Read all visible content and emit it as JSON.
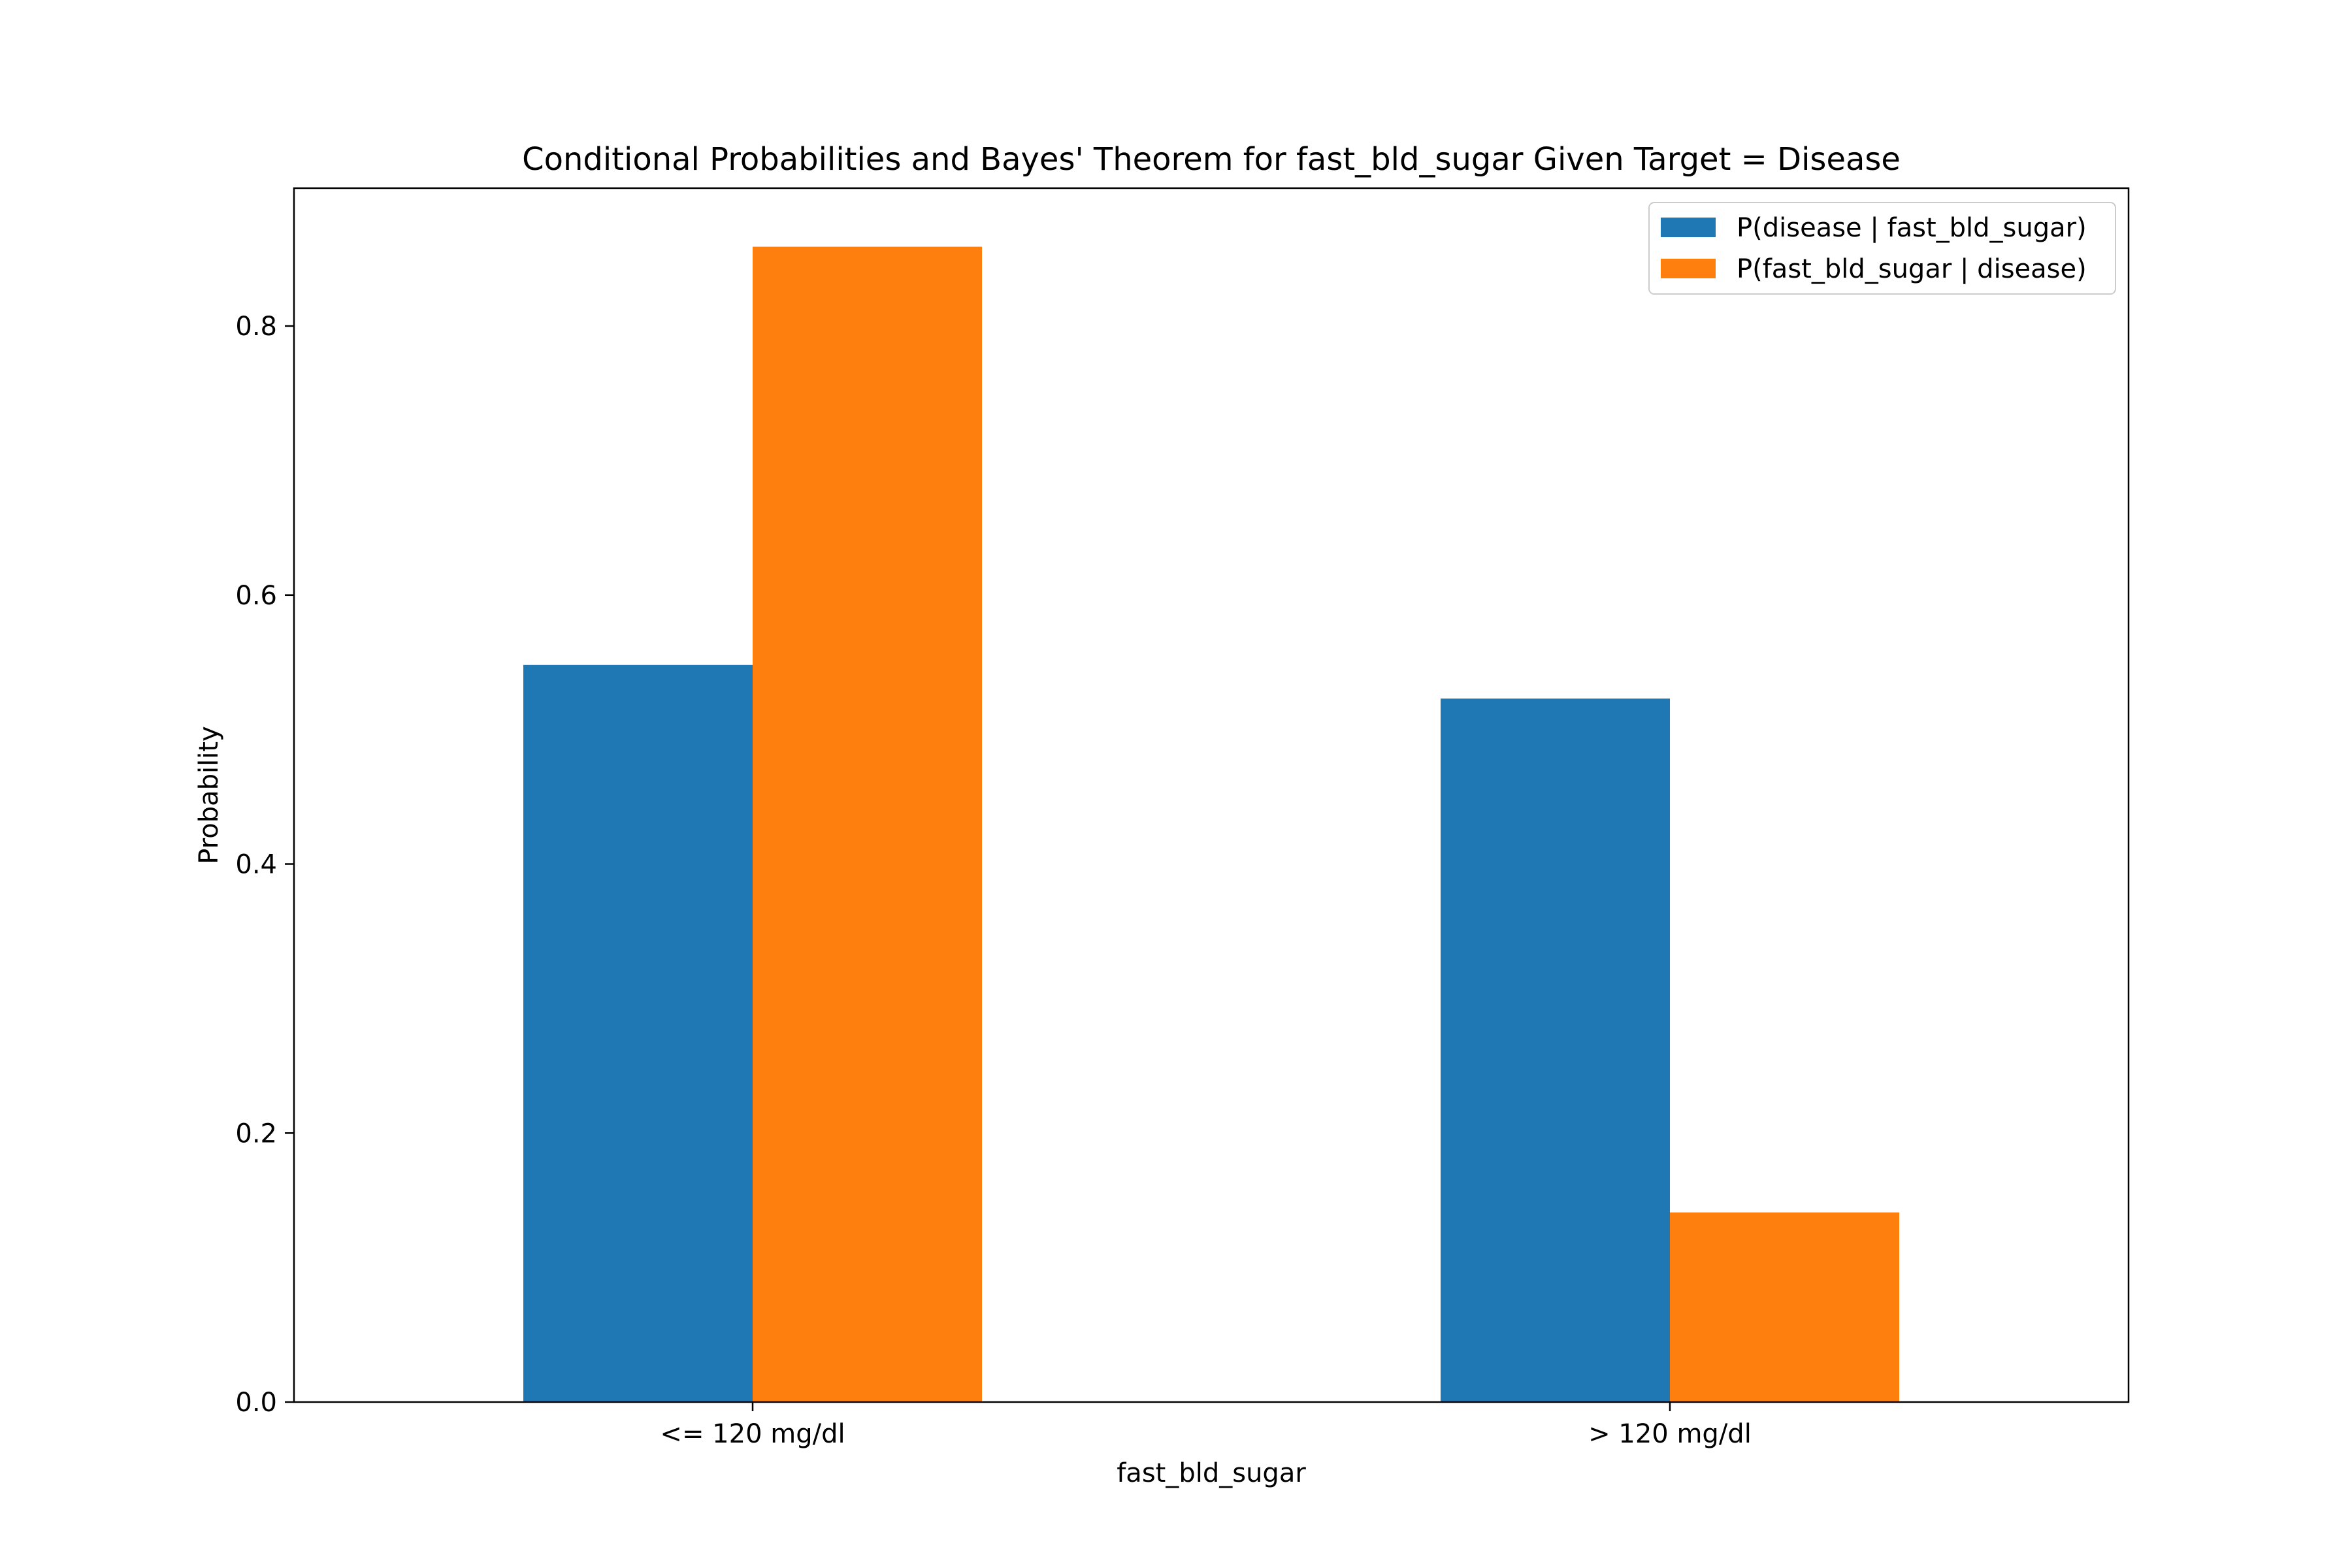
{
  "chart_data": {
    "type": "bar",
    "title": "Conditional Probabilities and Bayes' Theorem for fast_bld_sugar Given Target = Disease",
    "xlabel": "fast_bld_sugar",
    "ylabel": "Probability",
    "categories": [
      "<= 120 mg/dl",
      "> 120 mg/dl"
    ],
    "series": [
      {
        "name": "P(disease | fast_bld_sugar)",
        "color": "#1f77b4",
        "values": [
          0.548,
          0.523
        ]
      },
      {
        "name": "P(fast_bld_sugar | disease)",
        "color": "#ff7f0e",
        "values": [
          0.859,
          0.141
        ]
      }
    ],
    "ylim": [
      0,
      0.9025
    ],
    "yticks": [
      "0.0",
      "0.2",
      "0.4",
      "0.6",
      "0.8"
    ],
    "grid": false,
    "legend_position": "top-right"
  }
}
